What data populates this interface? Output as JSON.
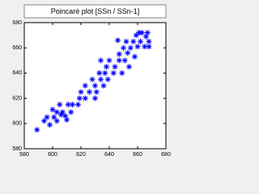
{
  "chart_data": {
    "type": "scatter",
    "title": "Poincaré plot [SSn / SSn-1]",
    "x": [
      589,
      594,
      596,
      598,
      600,
      601,
      603,
      603,
      605,
      606,
      607,
      609,
      610,
      611,
      613,
      614,
      618,
      619,
      620,
      623,
      623,
      626,
      628,
      630,
      630,
      631,
      633,
      634,
      634,
      636,
      637,
      638,
      639,
      640,
      643,
      644,
      646,
      647,
      647,
      649,
      650,
      651,
      652,
      653,
      654,
      655,
      657,
      658,
      659,
      660,
      661,
      662,
      663,
      665,
      666,
      667,
      668,
      668
    ],
    "values": [
      595,
      602,
      605,
      599,
      611,
      605,
      602,
      609,
      615,
      607,
      609,
      606,
      603,
      615,
      609,
      615,
      615,
      620,
      625,
      620,
      630,
      625,
      635,
      620,
      630,
      625,
      640,
      635,
      650,
      630,
      640,
      645,
      635,
      650,
      640,
      645,
      666,
      650,
      655,
      640,
      660,
      650,
      665,
      656,
      645,
      660,
      665,
      653,
      670,
      661,
      672,
      665,
      672,
      661,
      669,
      672,
      665,
      661
    ],
    "color": "#0000ff",
    "xlim": [
      580,
      680
    ],
    "xticks": [
      580,
      600,
      620,
      640,
      660,
      680
    ],
    "ylim": [
      580,
      680
    ],
    "yticks": [
      580,
      600,
      620,
      640,
      660,
      680
    ]
  }
}
